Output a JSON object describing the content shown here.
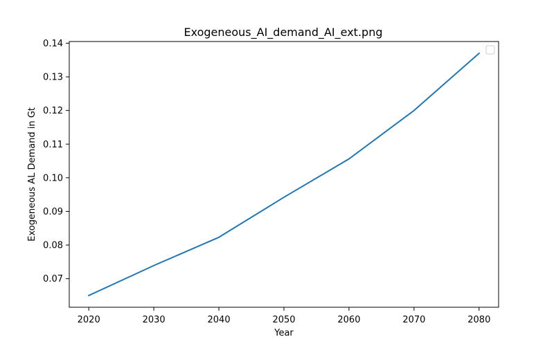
{
  "chart_data": {
    "type": "line",
    "title": "Exogeneous_AI_demand_AI_ext.png",
    "xlabel": "Year",
    "ylabel": "Exogeneous AL Demand in Gt",
    "x": [
      2020,
      2030,
      2040,
      2050,
      2060,
      2070,
      2080
    ],
    "series": [
      {
        "name": "",
        "values": [
          0.065,
          0.0739,
          0.0823,
          0.0942,
          0.1056,
          0.12,
          0.137
        ],
        "color": "#1f77b4"
      }
    ],
    "xlim": [
      2017,
      2083
    ],
    "ylim": [
      0.0615,
      0.1405
    ],
    "xticks": [
      2020,
      2030,
      2040,
      2050,
      2060,
      2070,
      2080
    ],
    "xtick_labels": [
      "2020",
      "2030",
      "2040",
      "2050",
      "2060",
      "2070",
      "2080"
    ],
    "yticks": [
      0.07,
      0.08,
      0.09,
      0.1,
      0.11,
      0.12,
      0.13,
      0.14
    ],
    "ytick_labels": [
      "0.07",
      "0.08",
      "0.09",
      "0.10",
      "0.11",
      "0.12",
      "0.13",
      "0.14"
    ],
    "grid": false,
    "legend": {
      "position": "top-right",
      "entries": []
    }
  }
}
